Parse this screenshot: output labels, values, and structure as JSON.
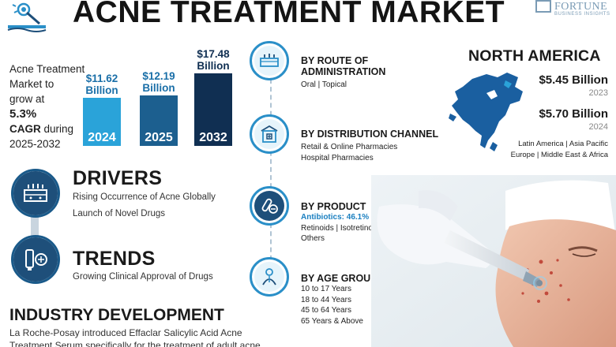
{
  "header": {
    "title": "ACNE TREATMENT MARKET",
    "brand_name": "FORTUNE",
    "brand_sub": "BUSINESS INSIGHTS"
  },
  "growth": {
    "line1": "Acne Treatment",
    "line2": "Market to",
    "line3": "grow at",
    "cagr_value": "5.3%",
    "cagr_label": "CAGR",
    "line5_suffix": " during",
    "period": "2025-2032"
  },
  "chart_data": {
    "type": "bar",
    "categories": [
      "2024",
      "2025",
      "2032"
    ],
    "values": [
      11.62,
      12.19,
      17.48
    ],
    "value_labels": [
      "$11.62 Billion",
      "$12.19 Billion",
      "$17.48 Billion"
    ],
    "colors": [
      "#2aa3d9",
      "#1c5f8f",
      "#102f52"
    ]
  },
  "drivers": {
    "title": "DRIVERS",
    "items": [
      "Rising Occurrence of Acne Globally",
      "Launch of Novel Drugs"
    ]
  },
  "trends": {
    "title": "TRENDS",
    "items": [
      "Growing Clinical Approval of Drugs"
    ]
  },
  "segments": [
    {
      "title_l1": "BY ROUTE OF",
      "title_l2": "ADMINISTRATION",
      "lines": [
        "Oral  |  Topical"
      ],
      "highlight": ""
    },
    {
      "title_l1": "BY DISTRIBUTION CHANNEL",
      "title_l2": "",
      "lines": [
        "Retail & Online Pharmacies",
        "Hospital Pharmacies"
      ],
      "highlight": ""
    },
    {
      "title_l1": "BY PRODUCT",
      "title_l2": "",
      "lines": [
        "Retinoids  |  Isotretinoin",
        "Others"
      ],
      "highlight": "Antibiotics: 46.1%"
    },
    {
      "title_l1": "BY AGE GROUP",
      "title_l2": "",
      "lines": [
        "10 to 17 Years",
        "18 to 44 Years",
        "45 to 64 Years",
        "65 Years & Above"
      ],
      "highlight": ""
    }
  ],
  "north_america": {
    "title": "NORTH AMERICA",
    "value_2023": "$5.45 Billion",
    "year_2023": "2023",
    "value_2024": "$5.70 Billion",
    "year_2024": "2024",
    "regions_l1": "Latin America  |  Asia Pacific",
    "regions_l2": "Europe  |  Middle East & Africa"
  },
  "industry": {
    "title": "INDUSTRY DEVELOPMENT",
    "line1": "La Roche-Posay introduced Effaclar Salicylic Acid Acne",
    "line2": "Treatment Serum specifically for the treatment of adult acne."
  },
  "colors": {
    "accent_light": "#2aa3d9",
    "accent_mid": "#1c5f8f",
    "accent_dark": "#102f52",
    "highlight_text": "#1a7fc0"
  }
}
